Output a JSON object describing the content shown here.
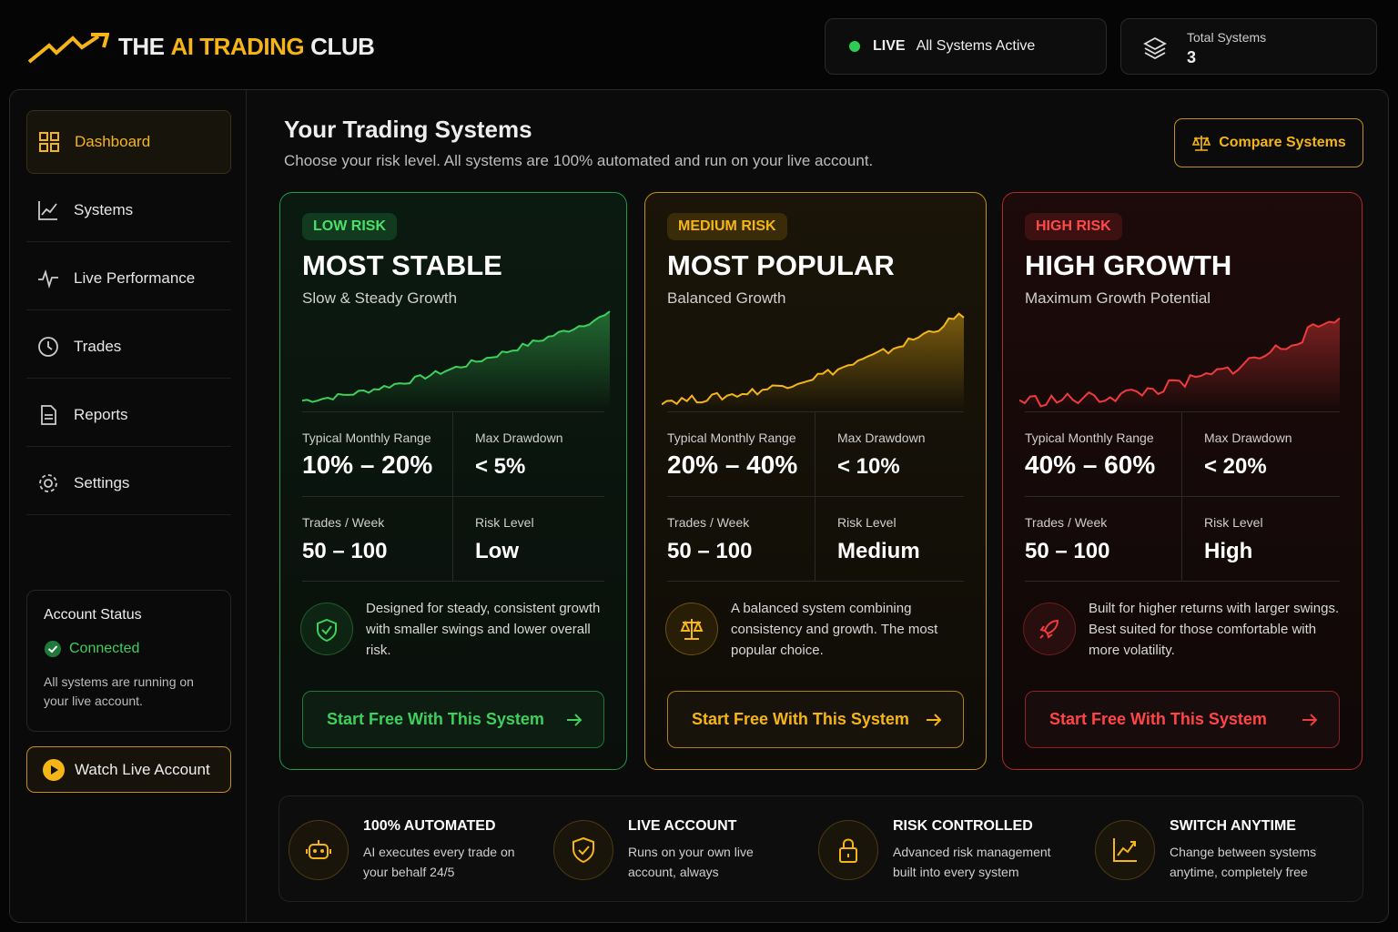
{
  "header": {
    "brand": [
      "THE",
      "AI TRADING",
      "CLUB"
    ],
    "live": "LIVE",
    "live_text": "All Systems Active",
    "total_label": "Total Systems",
    "total_value": 3
  },
  "sidebar": {
    "nav": [
      "Dashboard",
      "Systems",
      "Live Performance",
      "Trades",
      "Reports",
      "Settings"
    ],
    "account": {
      "title": "Account Status",
      "status": "Connected",
      "note": "All systems are running on your live account."
    },
    "watch": "Watch Live Account"
  },
  "main": {
    "title": "Your Trading Systems",
    "subtitle": "Choose your risk level. All systems are 100% automated and run on your live account.",
    "compare": "Compare Systems",
    "cards": [
      {
        "badge": "LOW RISK",
        "title": "MOST STABLE",
        "subtitle": "Slow & Steady Growth",
        "stats": [
          [
            "Typical Monthly Range",
            "10% – 20%"
          ],
          [
            "Max Drawdown",
            "< 5%"
          ],
          [
            "Trades / Week",
            "50 – 100"
          ],
          [
            "Risk Level",
            "Low"
          ]
        ],
        "description": "Designed for steady, consistent growth with smaller swings and lower overall risk.",
        "button": "Start Free With This System"
      },
      {
        "badge": "MEDIUM RISK",
        "title": "MOST POPULAR",
        "subtitle": "Balanced Growth",
        "stats": [
          [
            "Typical Monthly Range",
            "20% – 40%"
          ],
          [
            "Max Drawdown",
            "< 10%"
          ],
          [
            "Trades / Week",
            "50 – 100"
          ],
          [
            "Risk Level",
            "Medium"
          ]
        ],
        "description": "A balanced system combining consistency and growth. The most popular choice.",
        "button": "Start Free With This System"
      },
      {
        "badge": "HIGH RISK",
        "title": "HIGH GROWTH",
        "subtitle": "Maximum Growth Potential",
        "stats": [
          [
            "Typical Monthly Range",
            "40% – 60%"
          ],
          [
            "Max Drawdown",
            "< 20%"
          ],
          [
            "Trades / Week",
            "50 – 100"
          ],
          [
            "Risk Level",
            "High"
          ]
        ],
        "description": "Built for higher returns with larger swings. Best suited for those comfortable with more volatility.",
        "button": "Start Free With This System"
      }
    ],
    "features": [
      {
        "title": "100% AUTOMATED",
        "text": "AI executes every trade on your behalf 24/5"
      },
      {
        "title": "LIVE ACCOUNT",
        "text": "Runs on your own live account, always"
      },
      {
        "title": "RISK CONTROLLED",
        "text": "Advanced risk management built into every system"
      },
      {
        "title": "SWITCH ANYTIME",
        "text": "Change between systems anytime, completely free"
      }
    ]
  }
}
